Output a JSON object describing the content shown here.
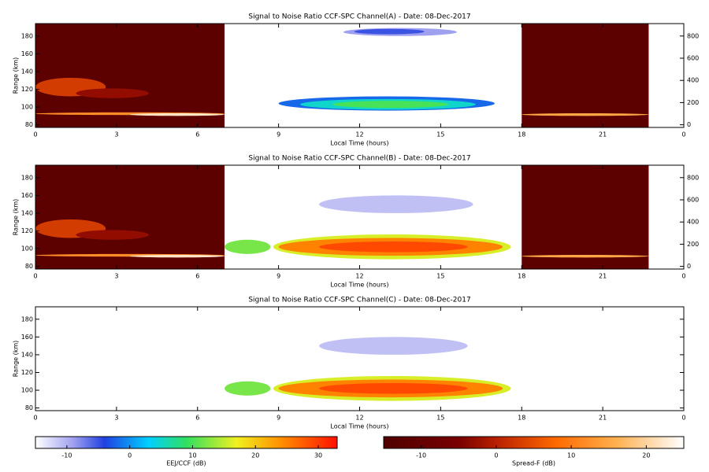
{
  "chart_data": [
    {
      "type": "heatmap",
      "title": "Signal to Noise Ratio CCF-SPC Channel(A) - Date: 08-Dec-2017",
      "xlabel": "Local Time (hours)",
      "ylabel": "Range (km)",
      "xlim": [
        0,
        24
      ],
      "xticks": [
        0,
        3,
        6,
        9,
        12,
        15,
        18,
        21,
        {
          "value": 24,
          "label": "0"
        }
      ],
      "ylim": [
        77,
        194
      ],
      "yticks": [
        80,
        100,
        120,
        140,
        160,
        180
      ],
      "y2lim": [
        -24,
        912
      ],
      "y2ticks": [
        0,
        200,
        400,
        600,
        800
      ],
      "background": [
        {
          "t": [
            0,
            7
          ],
          "range": [
            77,
            194
          ],
          "snr": -12
        },
        {
          "t": [
            18,
            22.7
          ],
          "range": [
            77,
            194
          ],
          "snr": -12
        }
      ],
      "spreadf": [
        {
          "t": [
            0,
            2.6
          ],
          "range": [
            112,
            133
          ],
          "snr": 3
        },
        {
          "t": [
            1.5,
            4.2
          ],
          "range": [
            110,
            121
          ],
          "snr": -3
        },
        {
          "t": [
            0,
            7
          ],
          "range": [
            91,
            94
          ],
          "snr": 12
        },
        {
          "t": [
            3.5,
            7
          ],
          "range": [
            90,
            93
          ],
          "snr": 22
        },
        {
          "t": [
            18,
            22.7
          ],
          "range": [
            90,
            93
          ],
          "snr": 15
        }
      ],
      "eej": [
        {
          "t": [
            11.4,
            15.6
          ],
          "range": [
            180,
            189
          ],
          "snr": -9
        },
        {
          "t": [
            11.8,
            14.4
          ],
          "range": [
            182,
            188
          ],
          "snr": -5
        },
        {
          "t": [
            9,
            17
          ],
          "range": [
            96,
            112
          ],
          "snr": -2
        },
        {
          "t": [
            9.8,
            16.3
          ],
          "range": [
            97,
            109
          ],
          "snr": 5
        },
        {
          "t": [
            11,
            15.3
          ],
          "range": [
            99,
            107
          ],
          "snr": 10
        }
      ]
    },
    {
      "type": "heatmap",
      "title": "Signal to Noise Ratio CCF-SPC Channel(B) - Date: 08-Dec-2017",
      "xlabel": "Local Time (hours)",
      "ylabel": "Range (km)",
      "xlim": [
        0,
        24
      ],
      "xticks": [
        0,
        3,
        6,
        9,
        12,
        15,
        18,
        21,
        {
          "value": 24,
          "label": "0"
        }
      ],
      "ylim": [
        77,
        194
      ],
      "yticks": [
        80,
        100,
        120,
        140,
        160,
        180
      ],
      "y2lim": [
        -24,
        912
      ],
      "y2ticks": [
        0,
        200,
        400,
        600,
        800
      ],
      "background": [
        {
          "t": [
            0,
            7
          ],
          "range": [
            77,
            194
          ],
          "snr": -12
        },
        {
          "t": [
            18,
            22.7
          ],
          "range": [
            77,
            194
          ],
          "snr": -12
        }
      ],
      "spreadf": [
        {
          "t": [
            0,
            2.6
          ],
          "range": [
            112,
            133
          ],
          "snr": 3
        },
        {
          "t": [
            1.5,
            4.2
          ],
          "range": [
            110,
            121
          ],
          "snr": -3
        },
        {
          "t": [
            0,
            7
          ],
          "range": [
            91,
            94
          ],
          "snr": 12
        },
        {
          "t": [
            3.5,
            7
          ],
          "range": [
            90,
            93
          ],
          "snr": 22
        },
        {
          "t": [
            18,
            22.7
          ],
          "range": [
            90,
            93
          ],
          "snr": 15
        }
      ],
      "eej": [
        {
          "t": [
            10.5,
            16.2
          ],
          "range": [
            140,
            160
          ],
          "snr": -11
        },
        {
          "t": [
            7,
            8.7
          ],
          "range": [
            94,
            110
          ],
          "snr": 12
        },
        {
          "t": [
            8.8,
            17.6
          ],
          "range": [
            88,
            116
          ],
          "snr": 16
        },
        {
          "t": [
            9,
            17.3
          ],
          "range": [
            92,
            112
          ],
          "snr": 25
        },
        {
          "t": [
            10.5,
            16
          ],
          "range": [
            96,
            108
          ],
          "snr": 29
        }
      ]
    },
    {
      "type": "heatmap",
      "title": "Signal to Noise Ratio CCF-SPC Channel(C) - Date: 08-Dec-2017",
      "xlabel": "Local Time (hours)",
      "ylabel": "Range (km)",
      "xlim": [
        0,
        24
      ],
      "xticks": [
        0,
        3,
        6,
        9,
        12,
        15,
        18,
        21,
        {
          "value": 24,
          "label": "0"
        }
      ],
      "ylim": [
        77,
        194
      ],
      "yticks": [
        80,
        100,
        120,
        140,
        160,
        180
      ],
      "background": [],
      "spreadf": [],
      "eej": [
        {
          "t": [
            10.5,
            16
          ],
          "range": [
            140,
            160
          ],
          "snr": -11
        },
        {
          "t": [
            7,
            8.7
          ],
          "range": [
            94,
            110
          ],
          "snr": 12
        },
        {
          "t": [
            8.8,
            17.6
          ],
          "range": [
            88,
            116
          ],
          "snr": 16
        },
        {
          "t": [
            9,
            17.3
          ],
          "range": [
            92,
            112
          ],
          "snr": 25
        },
        {
          "t": [
            10.5,
            16
          ],
          "range": [
            96,
            108
          ],
          "snr": 29
        }
      ]
    }
  ],
  "colorbars": [
    {
      "label": "EEJ/CCF (dB)",
      "lim": [
        -15,
        33
      ],
      "ticks": [
        -10,
        0,
        10,
        20,
        30
      ],
      "stops": [
        [
          -15,
          "#ffffff"
        ],
        [
          -9,
          "#a0a0f0"
        ],
        [
          -4,
          "#2040e0"
        ],
        [
          3,
          "#00d0ff"
        ],
        [
          9,
          "#30e060"
        ],
        [
          17,
          "#f0f020"
        ],
        [
          24,
          "#ff9000"
        ],
        [
          33,
          "#ff1000"
        ]
      ]
    },
    {
      "label": "Spread-F (dB)",
      "lim": [
        -15,
        25
      ],
      "ticks": [
        -10,
        0,
        10,
        20
      ],
      "stops": [
        [
          -15,
          "#500000"
        ],
        [
          -5,
          "#780000"
        ],
        [
          0,
          "#b82000"
        ],
        [
          8,
          "#ff6a00"
        ],
        [
          16,
          "#ffb050"
        ],
        [
          25,
          "#ffffff"
        ]
      ]
    }
  ]
}
